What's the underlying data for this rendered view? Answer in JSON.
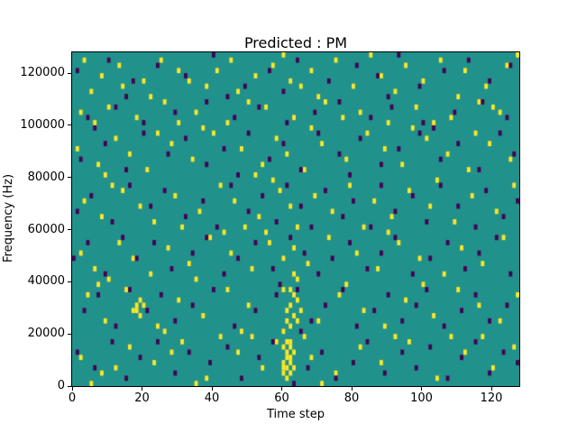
{
  "title": "Predicted : PM",
  "xlabel": "Time step",
  "ylabel": "Frequency (Hz)",
  "chart_data": {
    "type": "heatmap",
    "title": "Predicted : PM",
    "xlabel": "Time step",
    "ylabel": "Frequency (Hz)",
    "x_range": [
      0,
      128
    ],
    "y_range": [
      0,
      128000
    ],
    "x_bins": 128,
    "y_bins": 64,
    "xticks": [
      0,
      20,
      40,
      60,
      80,
      100,
      120
    ],
    "xtick_labels": [
      "0",
      "20",
      "40",
      "60",
      "80",
      "100",
      "120"
    ],
    "yticks": [
      0,
      20000,
      40000,
      60000,
      80000,
      100000,
      120000
    ],
    "ytick_labels": [
      "0",
      "20000",
      "40000",
      "60000",
      "80000",
      "100000",
      "120000"
    ],
    "legend": "none",
    "grid": false,
    "colors": {
      "background": "#21918c",
      "high": "#fde725",
      "low": "#440154",
      "figure_bg": "#ffffff",
      "axes_edge": "#000000"
    },
    "high_cells": [
      [
        3,
        62
      ],
      [
        8,
        59
      ],
      [
        13,
        61
      ],
      [
        20,
        58
      ],
      [
        25,
        62
      ],
      [
        30,
        60
      ],
      [
        38,
        57
      ],
      [
        45,
        62
      ],
      [
        52,
        59
      ],
      [
        57,
        61
      ],
      [
        60,
        63
      ],
      [
        62,
        58
      ],
      [
        68,
        60
      ],
      [
        75,
        62
      ],
      [
        80,
        57
      ],
      [
        88,
        59
      ],
      [
        95,
        61
      ],
      [
        100,
        58
      ],
      [
        105,
        62
      ],
      [
        112,
        60
      ],
      [
        118,
        57
      ],
      [
        124,
        61
      ],
      [
        127,
        63
      ],
      [
        5,
        56
      ],
      [
        22,
        55
      ],
      [
        47,
        56
      ],
      [
        70,
        55
      ],
      [
        92,
        56
      ],
      [
        110,
        55
      ],
      [
        33,
        58
      ],
      [
        41,
        60
      ],
      [
        85,
        63
      ],
      [
        14,
        57
      ],
      [
        65,
        57
      ],
      [
        2,
        52
      ],
      [
        6,
        50
      ],
      [
        10,
        53
      ],
      [
        18,
        51
      ],
      [
        26,
        54
      ],
      [
        35,
        52
      ],
      [
        44,
        50
      ],
      [
        55,
        53
      ],
      [
        63,
        51
      ],
      [
        72,
        54
      ],
      [
        82,
        52
      ],
      [
        90,
        50
      ],
      [
        98,
        53
      ],
      [
        108,
        51
      ],
      [
        116,
        54
      ],
      [
        122,
        52
      ],
      [
        30,
        50
      ],
      [
        50,
        54
      ],
      [
        77,
        51
      ],
      [
        103,
        50
      ],
      [
        120,
        53
      ],
      [
        1,
        45
      ],
      [
        7,
        42
      ],
      [
        12,
        47
      ],
      [
        16,
        44
      ],
      [
        21,
        41
      ],
      [
        28,
        46
      ],
      [
        34,
        43
      ],
      [
        40,
        48
      ],
      [
        48,
        45
      ],
      [
        54,
        42
      ],
      [
        58,
        47
      ],
      [
        61,
        44
      ],
      [
        66,
        41
      ],
      [
        71,
        46
      ],
      [
        78,
        43
      ],
      [
        84,
        48
      ],
      [
        89,
        45
      ],
      [
        94,
        42
      ],
      [
        101,
        47
      ],
      [
        107,
        44
      ],
      [
        113,
        41
      ],
      [
        119,
        46
      ],
      [
        125,
        43
      ],
      [
        37,
        49
      ],
      [
        9,
        40
      ],
      [
        52,
        40
      ],
      [
        97,
        49
      ],
      [
        115,
        48
      ],
      [
        24,
        48
      ],
      [
        68,
        49
      ],
      [
        3,
        35
      ],
      [
        8,
        32
      ],
      [
        14,
        37
      ],
      [
        19,
        34
      ],
      [
        23,
        31
      ],
      [
        29,
        36
      ],
      [
        36,
        33
      ],
      [
        42,
        38
      ],
      [
        46,
        35
      ],
      [
        53,
        32
      ],
      [
        59,
        37
      ],
      [
        62,
        34
      ],
      [
        64,
        30
      ],
      [
        69,
        36
      ],
      [
        74,
        33
      ],
      [
        79,
        38
      ],
      [
        86,
        35
      ],
      [
        91,
        32
      ],
      [
        96,
        37
      ],
      [
        102,
        34
      ],
      [
        109,
        31
      ],
      [
        114,
        36
      ],
      [
        121,
        33
      ],
      [
        126,
        38
      ],
      [
        31,
        30
      ],
      [
        57,
        39
      ],
      [
        83,
        30
      ],
      [
        104,
        39
      ],
      [
        11,
        38
      ],
      [
        49,
        30
      ],
      [
        2,
        25
      ],
      [
        6,
        22
      ],
      [
        13,
        27
      ],
      [
        17,
        24
      ],
      [
        22,
        21
      ],
      [
        27,
        26
      ],
      [
        33,
        23
      ],
      [
        39,
        28
      ],
      [
        45,
        25
      ],
      [
        51,
        22
      ],
      [
        56,
        27
      ],
      [
        60,
        24
      ],
      [
        63,
        21
      ],
      [
        63,
        26
      ],
      [
        67,
        23
      ],
      [
        73,
        28
      ],
      [
        81,
        25
      ],
      [
        87,
        22
      ],
      [
        93,
        27
      ],
      [
        99,
        24
      ],
      [
        106,
        21
      ],
      [
        111,
        26
      ],
      [
        117,
        23
      ],
      [
        123,
        28
      ],
      [
        35,
        20
      ],
      [
        55,
        29
      ],
      [
        64,
        20
      ],
      [
        90,
        29
      ],
      [
        10,
        20
      ],
      [
        43,
        29
      ],
      [
        18,
        14
      ],
      [
        18,
        15
      ],
      [
        19,
        16
      ],
      [
        19,
        13
      ],
      [
        20,
        15
      ],
      [
        17,
        14
      ],
      [
        60,
        10
      ],
      [
        61,
        12
      ],
      [
        61,
        14
      ],
      [
        62,
        11
      ],
      [
        62,
        15
      ],
      [
        63,
        13
      ],
      [
        63,
        17
      ],
      [
        64,
        12
      ],
      [
        64,
        16
      ],
      [
        65,
        14
      ],
      [
        60,
        18
      ],
      [
        62,
        18
      ],
      [
        4,
        17
      ],
      [
        9,
        12
      ],
      [
        15,
        18
      ],
      [
        24,
        11
      ],
      [
        30,
        16
      ],
      [
        37,
        13
      ],
      [
        44,
        18
      ],
      [
        50,
        15
      ],
      [
        70,
        12
      ],
      [
        76,
        17
      ],
      [
        83,
        14
      ],
      [
        89,
        11
      ],
      [
        95,
        16
      ],
      [
        103,
        13
      ],
      [
        110,
        18
      ],
      [
        116,
        15
      ],
      [
        122,
        12
      ],
      [
        127,
        17
      ],
      [
        26,
        10
      ],
      [
        48,
        10
      ],
      [
        78,
        19
      ],
      [
        100,
        19
      ],
      [
        7,
        19
      ],
      [
        60,
        2
      ],
      [
        60,
        3
      ],
      [
        60,
        4
      ],
      [
        61,
        1
      ],
      [
        61,
        3
      ],
      [
        61,
        5
      ],
      [
        61,
        6
      ],
      [
        62,
        2
      ],
      [
        62,
        4
      ],
      [
        62,
        5
      ],
      [
        62,
        7
      ],
      [
        63,
        3
      ],
      [
        63,
        6
      ],
      [
        61,
        8
      ],
      [
        62,
        8
      ],
      [
        60,
        7
      ],
      [
        2,
        5
      ],
      [
        8,
        2
      ],
      [
        16,
        7
      ],
      [
        23,
        4
      ],
      [
        31,
        8
      ],
      [
        38,
        1
      ],
      [
        47,
        6
      ],
      [
        54,
        3
      ],
      [
        58,
        8
      ],
      [
        68,
        5
      ],
      [
        75,
        2
      ],
      [
        82,
        7
      ],
      [
        88,
        4
      ],
      [
        96,
        8
      ],
      [
        104,
        1
      ],
      [
        112,
        6
      ],
      [
        120,
        3
      ],
      [
        126,
        7
      ],
      [
        12,
        3
      ],
      [
        28,
        6
      ],
      [
        42,
        9
      ],
      [
        66,
        9
      ],
      [
        92,
        9
      ],
      [
        108,
        9
      ],
      [
        5,
        0
      ],
      [
        35,
        0
      ],
      [
        51,
        9
      ],
      [
        71,
        0
      ],
      [
        117,
        9
      ]
    ],
    "low_cells": [
      [
        1,
        60
      ],
      [
        10,
        62
      ],
      [
        17,
        58
      ],
      [
        24,
        61
      ],
      [
        32,
        59
      ],
      [
        40,
        63
      ],
      [
        49,
        57
      ],
      [
        56,
        60
      ],
      [
        64,
        62
      ],
      [
        73,
        58
      ],
      [
        81,
        61
      ],
      [
        87,
        59
      ],
      [
        93,
        63
      ],
      [
        99,
        57
      ],
      [
        106,
        60
      ],
      [
        113,
        62
      ],
      [
        119,
        58
      ],
      [
        125,
        61
      ],
      [
        44,
        55
      ],
      [
        60,
        56
      ],
      [
        15,
        55
      ],
      [
        90,
        55
      ],
      [
        4,
        51
      ],
      [
        12,
        53
      ],
      [
        20,
        50
      ],
      [
        29,
        52
      ],
      [
        38,
        54
      ],
      [
        46,
        51
      ],
      [
        53,
        53
      ],
      [
        61,
        50
      ],
      [
        69,
        52
      ],
      [
        76,
        54
      ],
      [
        85,
        51
      ],
      [
        91,
        53
      ],
      [
        100,
        50
      ],
      [
        109,
        52
      ],
      [
        117,
        54
      ],
      [
        124,
        51
      ],
      [
        2,
        43
      ],
      [
        9,
        46
      ],
      [
        15,
        41
      ],
      [
        20,
        48
      ],
      [
        27,
        44
      ],
      [
        32,
        47
      ],
      [
        38,
        42
      ],
      [
        43,
        45
      ],
      [
        50,
        48
      ],
      [
        56,
        43
      ],
      [
        60,
        46
      ],
      [
        65,
        41
      ],
      [
        70,
        48
      ],
      [
        76,
        44
      ],
      [
        82,
        47
      ],
      [
        88,
        42
      ],
      [
        93,
        45
      ],
      [
        99,
        48
      ],
      [
        105,
        43
      ],
      [
        110,
        46
      ],
      [
        116,
        41
      ],
      [
        122,
        48
      ],
      [
        126,
        44
      ],
      [
        6,
        49
      ],
      [
        47,
        40
      ],
      [
        79,
        40
      ],
      [
        103,
        49
      ],
      [
        1,
        33
      ],
      [
        5,
        36
      ],
      [
        11,
        31
      ],
      [
        16,
        38
      ],
      [
        22,
        34
      ],
      [
        26,
        37
      ],
      [
        32,
        32
      ],
      [
        37,
        35
      ],
      [
        41,
        30
      ],
      [
        45,
        38
      ],
      [
        50,
        33
      ],
      [
        54,
        36
      ],
      [
        58,
        31
      ],
      [
        61,
        38
      ],
      [
        65,
        34
      ],
      [
        68,
        30
      ],
      [
        72,
        37
      ],
      [
        77,
        32
      ],
      [
        80,
        35
      ],
      [
        85,
        30
      ],
      [
        88,
        38
      ],
      [
        92,
        33
      ],
      [
        97,
        36
      ],
      [
        101,
        31
      ],
      [
        105,
        38
      ],
      [
        110,
        34
      ],
      [
        115,
        30
      ],
      [
        118,
        37
      ],
      [
        123,
        32
      ],
      [
        127,
        35
      ],
      [
        0,
        24
      ],
      [
        4,
        27
      ],
      [
        9,
        21
      ],
      [
        14,
        28
      ],
      [
        18,
        24
      ],
      [
        23,
        27
      ],
      [
        28,
        22
      ],
      [
        34,
        25
      ],
      [
        38,
        28
      ],
      [
        43,
        21
      ],
      [
        47,
        24
      ],
      [
        52,
        27
      ],
      [
        57,
        22
      ],
      [
        62,
        28
      ],
      [
        66,
        25
      ],
      [
        70,
        21
      ],
      [
        74,
        24
      ],
      [
        79,
        27
      ],
      [
        84,
        22
      ],
      [
        88,
        25
      ],
      [
        92,
        28
      ],
      [
        97,
        21
      ],
      [
        102,
        24
      ],
      [
        107,
        27
      ],
      [
        112,
        22
      ],
      [
        116,
        25
      ],
      [
        121,
        28
      ],
      [
        125,
        21
      ],
      [
        3,
        14
      ],
      [
        7,
        17
      ],
      [
        12,
        11
      ],
      [
        16,
        18
      ],
      [
        21,
        14
      ],
      [
        25,
        17
      ],
      [
        29,
        12
      ],
      [
        34,
        15
      ],
      [
        40,
        18
      ],
      [
        46,
        11
      ],
      [
        52,
        14
      ],
      [
        58,
        17
      ],
      [
        64,
        18
      ],
      [
        68,
        12
      ],
      [
        72,
        15
      ],
      [
        77,
        18
      ],
      [
        81,
        11
      ],
      [
        86,
        14
      ],
      [
        90,
        17
      ],
      [
        94,
        12
      ],
      [
        98,
        15
      ],
      [
        101,
        18
      ],
      [
        106,
        11
      ],
      [
        111,
        14
      ],
      [
        115,
        17
      ],
      [
        119,
        12
      ],
      [
        124,
        15
      ],
      [
        59,
        19
      ],
      [
        65,
        10
      ],
      [
        1,
        6
      ],
      [
        6,
        3
      ],
      [
        11,
        8
      ],
      [
        15,
        1
      ],
      [
        19,
        5
      ],
      [
        24,
        8
      ],
      [
        29,
        2
      ],
      [
        33,
        6
      ],
      [
        39,
        4
      ],
      [
        44,
        7
      ],
      [
        48,
        1
      ],
      [
        53,
        5
      ],
      [
        57,
        8
      ],
      [
        63,
        0
      ],
      [
        67,
        3
      ],
      [
        71,
        6
      ],
      [
        75,
        1
      ],
      [
        80,
        4
      ],
      [
        84,
        8
      ],
      [
        89,
        2
      ],
      [
        94,
        6
      ],
      [
        98,
        3
      ],
      [
        102,
        7
      ],
      [
        107,
        1
      ],
      [
        111,
        5
      ],
      [
        115,
        8
      ],
      [
        119,
        2
      ],
      [
        123,
        6
      ],
      [
        127,
        4
      ]
    ]
  }
}
